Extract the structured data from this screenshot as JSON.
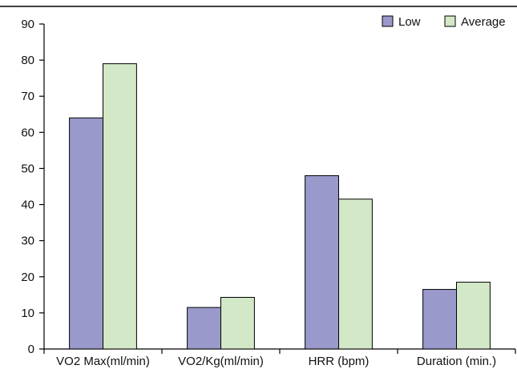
{
  "colors": {
    "low": "#9999cc",
    "average": "#d3e8c6",
    "axis": "#000000",
    "bar_stroke": "#000000"
  },
  "legend": {
    "position": "top-right",
    "items": [
      "Low",
      "Average"
    ]
  },
  "chart_data": {
    "type": "bar",
    "title": "",
    "xlabel": "",
    "ylabel": "",
    "ylim": [
      0,
      90
    ],
    "yticks": [
      0,
      10,
      20,
      30,
      40,
      50,
      60,
      70,
      80,
      90
    ],
    "grid": false,
    "categories": [
      "VO2 Max(ml/min)",
      "VO2/Kg(ml/min)",
      "HRR (bpm)",
      "Duration (min.)"
    ],
    "series": [
      {
        "name": "Low",
        "values": [
          64,
          11.5,
          48,
          16.5
        ]
      },
      {
        "name": "Average",
        "values": [
          79,
          14.3,
          41.5,
          18.5
        ]
      }
    ]
  }
}
